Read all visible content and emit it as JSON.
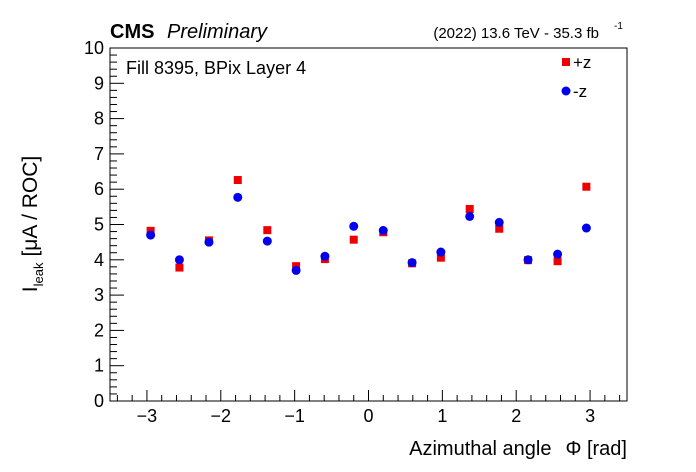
{
  "header": {
    "experiment": "CMS",
    "status": "Preliminary",
    "lumi": "(2022) 13.6 TeV - 35.3 fb",
    "lumi_exponent": "-1"
  },
  "chart_data": {
    "type": "scatter",
    "annotation": "Fill 8395, BPix Layer 4",
    "xlabel_text": "Azimuthal angle",
    "xlabel_symbol": "Φ [rad]",
    "ylabel_main": "I",
    "ylabel_sub": "leak",
    "ylabel_unit": "[μA / ROC]",
    "xlim": [
      -3.5,
      3.5
    ],
    "ylim": [
      0,
      10
    ],
    "grid": false,
    "legend_placement": "top-right",
    "x_ticks": [
      -3,
      -2,
      -1,
      0,
      1,
      2,
      3
    ],
    "x_tick_labels": [
      "−3",
      "−2",
      "−1",
      "0",
      "1",
      "2",
      "3"
    ],
    "y_ticks": [
      0,
      1,
      2,
      3,
      4,
      5,
      6,
      7,
      8,
      9,
      10
    ],
    "y_tick_labels": [
      "0",
      "1",
      "2",
      "3",
      "4",
      "5",
      "6",
      "7",
      "8",
      "9",
      "10"
    ],
    "x": [
      -2.95,
      -2.56,
      -2.16,
      -1.77,
      -1.37,
      -0.98,
      -0.59,
      -0.2,
      0.2,
      0.59,
      0.98,
      1.37,
      1.77,
      2.16,
      2.56,
      2.95
    ],
    "series": [
      {
        "name": "+z",
        "marker": "square",
        "color": "#ee0000",
        "values": [
          4.82,
          3.78,
          4.55,
          6.26,
          4.84,
          3.82,
          4.02,
          4.57,
          4.78,
          3.9,
          4.06,
          5.44,
          4.88,
          3.99,
          3.96,
          6.07
        ]
      },
      {
        "name": "-z",
        "marker": "circle",
        "color": "#0000ee",
        "values": [
          4.7,
          4.0,
          4.5,
          5.77,
          4.53,
          3.7,
          4.1,
          4.95,
          4.83,
          3.92,
          4.22,
          5.23,
          5.06,
          4.0,
          4.16,
          4.9
        ]
      }
    ]
  }
}
